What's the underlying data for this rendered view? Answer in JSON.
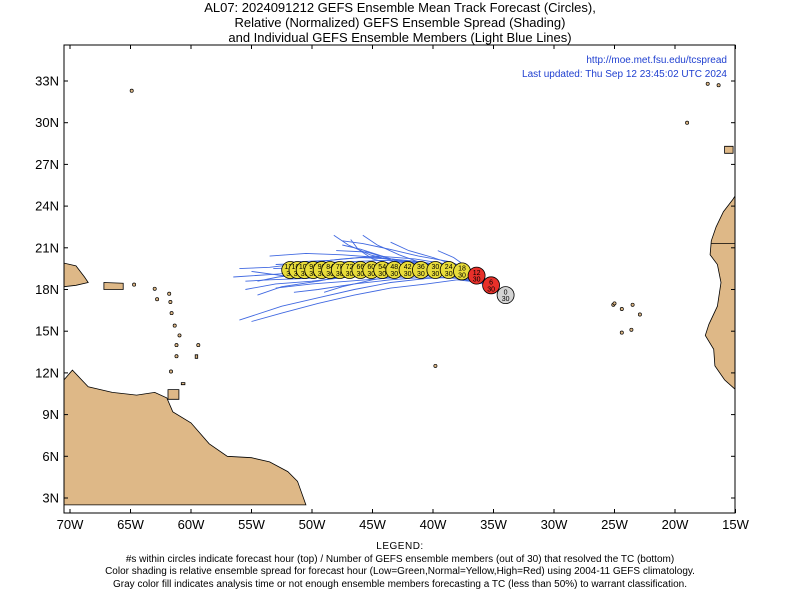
{
  "title": {
    "line1": "AL07: 2024091212 GEFS Ensemble Mean Track Forecast (Circles),",
    "line2": "Relative (Normalized) GEFS Ensemble Spread (Shading)",
    "line3": "and Individual GEFS Ensemble Members (Light Blue Lines)"
  },
  "info": {
    "url": "http://moe.met.fsu.edu/tcspread",
    "updated": "Last updated: Thu Sep 12 23:45:02 UTC 2024"
  },
  "axes": {
    "lon_ticks": [
      -70,
      -65,
      -60,
      -55,
      -50,
      -45,
      -40,
      -35,
      -30,
      -25,
      -20,
      -15
    ],
    "lon_labels": [
      "70W",
      "65W",
      "60W",
      "55W",
      "50W",
      "45W",
      "40W",
      "35W",
      "30W",
      "25W",
      "20W",
      "15W"
    ],
    "lat_ticks": [
      3,
      6,
      9,
      12,
      15,
      18,
      21,
      24,
      27,
      30,
      33
    ],
    "lat_labels": [
      "3N",
      "6N",
      "9N",
      "12N",
      "15N",
      "18N",
      "21N",
      "24N",
      "27N",
      "30N",
      "33N"
    ]
  },
  "colors": {
    "land": "#deb887",
    "member_lines": "#4169e1",
    "analysis": "#d3d3d3",
    "normal": "#e8dc3a",
    "high": "#e8302a",
    "text_blue": "#1f3fd0"
  },
  "track_points": [
    {
      "hour": "0",
      "members": "30",
      "lon": -34.0,
      "lat": 17.6,
      "spread": "analysis"
    },
    {
      "hour": "6",
      "members": "30",
      "lon": -35.2,
      "lat": 18.3,
      "spread": "high"
    },
    {
      "hour": "12",
      "members": "30",
      "lon": -36.4,
      "lat": 19.0,
      "spread": "high"
    },
    {
      "hour": "18",
      "members": "30",
      "lon": -37.6,
      "lat": 19.3,
      "spread": "normal"
    },
    {
      "hour": "24",
      "members": "30",
      "lon": -38.7,
      "lat": 19.4,
      "spread": "normal"
    },
    {
      "hour": "30",
      "members": "30",
      "lon": -39.8,
      "lat": 19.4,
      "spread": "normal"
    },
    {
      "hour": "36",
      "members": "30",
      "lon": -41.0,
      "lat": 19.4,
      "spread": "normal"
    },
    {
      "hour": "42",
      "members": "30",
      "lon": -42.1,
      "lat": 19.4,
      "spread": "normal"
    },
    {
      "hour": "48",
      "members": "30",
      "lon": -43.2,
      "lat": 19.4,
      "spread": "normal"
    },
    {
      "hour": "54",
      "members": "30",
      "lon": -44.2,
      "lat": 19.4,
      "spread": "normal"
    },
    {
      "hour": "60",
      "members": "30",
      "lon": -45.1,
      "lat": 19.4,
      "spread": "normal"
    },
    {
      "hour": "66",
      "members": "30",
      "lon": -46.0,
      "lat": 19.4,
      "spread": "normal"
    },
    {
      "hour": "72",
      "members": "30",
      "lon": -46.9,
      "lat": 19.4,
      "spread": "normal"
    },
    {
      "hour": "78",
      "members": "30",
      "lon": -47.7,
      "lat": 19.4,
      "spread": "normal"
    },
    {
      "hour": "84",
      "members": "30",
      "lon": -48.5,
      "lat": 19.4,
      "spread": "normal"
    },
    {
      "hour": "90",
      "members": "30",
      "lon": -49.2,
      "lat": 19.4,
      "spread": "normal"
    },
    {
      "hour": "96",
      "members": "30",
      "lon": -49.9,
      "lat": 19.4,
      "spread": "normal"
    },
    {
      "hour": "102",
      "members": "30",
      "lon": -50.6,
      "lat": 19.4,
      "spread": "normal"
    },
    {
      "hour": "108",
      "members": "30",
      "lon": -51.2,
      "lat": 19.4,
      "spread": "normal"
    },
    {
      "hour": "120",
      "members": "30",
      "lon": -51.8,
      "lat": 19.4,
      "spread": "normal"
    }
  ],
  "members": [
    [
      [
        -34.0,
        17.6
      ],
      [
        -36.0,
        18.7
      ],
      [
        -38.0,
        19.3
      ],
      [
        -41.0,
        19.5
      ],
      [
        -44.0,
        19.6
      ],
      [
        -47.0,
        19.5
      ],
      [
        -50.0,
        19.3
      ],
      [
        -53.0,
        19.1
      ],
      [
        -56.5,
        18.9
      ]
    ],
    [
      [
        -34.0,
        17.6
      ],
      [
        -36.2,
        18.9
      ],
      [
        -38.5,
        19.6
      ],
      [
        -41.5,
        20.0
      ],
      [
        -44.5,
        20.3
      ],
      [
        -47.5,
        20.5
      ],
      [
        -50.5,
        20.6
      ],
      [
        -53.5,
        20.4
      ]
    ],
    [
      [
        -34.0,
        17.6
      ],
      [
        -36.0,
        18.6
      ],
      [
        -38.2,
        19.0
      ],
      [
        -41.0,
        19.1
      ],
      [
        -44.0,
        19.0
      ],
      [
        -47.0,
        18.9
      ],
      [
        -50.0,
        18.6
      ],
      [
        -53.0,
        18.4
      ],
      [
        -55.5,
        18.0
      ]
    ],
    [
      [
        -34.0,
        17.6
      ],
      [
        -36.3,
        19.2
      ],
      [
        -38.6,
        20.0
      ],
      [
        -41.2,
        20.4
      ],
      [
        -43.6,
        20.9
      ],
      [
        -45.8,
        21.3
      ],
      [
        -47.5,
        21.5
      ]
    ],
    [
      [
        -34.0,
        17.6
      ],
      [
        -36.0,
        18.5
      ],
      [
        -38.0,
        18.9
      ],
      [
        -40.5,
        18.8
      ],
      [
        -43.5,
        18.5
      ],
      [
        -46.5,
        18.0
      ],
      [
        -49.5,
        17.4
      ],
      [
        -52.5,
        16.8
      ],
      [
        -56.0,
        15.8
      ]
    ],
    [
      [
        -34.0,
        17.6
      ],
      [
        -36.1,
        18.8
      ],
      [
        -38.2,
        19.4
      ],
      [
        -40.5,
        19.7
      ],
      [
        -43.0,
        20.0
      ],
      [
        -45.2,
        20.5
      ],
      [
        -47.0,
        21.2
      ],
      [
        -48.2,
        21.9
      ]
    ],
    [
      [
        -34.0,
        17.6
      ],
      [
        -35.8,
        18.5
      ],
      [
        -37.8,
        19.0
      ],
      [
        -40.5,
        19.2
      ],
      [
        -43.5,
        19.3
      ],
      [
        -46.5,
        19.1
      ],
      [
        -49.5,
        18.6
      ],
      [
        -52.5,
        18.2
      ],
      [
        -54.5,
        17.6
      ]
    ],
    [
      [
        -34.0,
        17.6
      ],
      [
        -36.2,
        19.0
      ],
      [
        -38.6,
        19.8
      ],
      [
        -41.5,
        20.2
      ],
      [
        -44.5,
        20.4
      ],
      [
        -47.5,
        20.2
      ],
      [
        -50.5,
        19.9
      ],
      [
        -53.5,
        19.6
      ],
      [
        -56.0,
        19.5
      ]
    ],
    [
      [
        -34.0,
        17.6
      ],
      [
        -36.0,
        18.6
      ],
      [
        -38.0,
        19.1
      ],
      [
        -40.0,
        19.2
      ],
      [
        -42.5,
        19.0
      ],
      [
        -45.0,
        18.7
      ],
      [
        -47.5,
        18.2
      ],
      [
        -49.0,
        17.8
      ]
    ],
    [
      [
        -34.0,
        17.6
      ],
      [
        -36.0,
        18.9
      ],
      [
        -38.0,
        19.7
      ],
      [
        -40.0,
        20.3
      ],
      [
        -42.0,
        20.8
      ],
      [
        -43.5,
        21.4
      ]
    ],
    [
      [
        -34.0,
        17.6
      ],
      [
        -36.0,
        18.6
      ],
      [
        -38.0,
        19.2
      ],
      [
        -40.2,
        19.5
      ],
      [
        -42.4,
        19.9
      ],
      [
        -44.2,
        20.4
      ],
      [
        -46.0,
        20.9
      ],
      [
        -47.5,
        21.2
      ]
    ],
    [
      [
        -34.0,
        17.6
      ],
      [
        -36.2,
        18.7
      ],
      [
        -38.5,
        19.2
      ],
      [
        -41.5,
        19.4
      ],
      [
        -44.5,
        19.3
      ],
      [
        -47.5,
        19.0
      ],
      [
        -50.5,
        18.8
      ],
      [
        -53.5,
        18.7
      ],
      [
        -55.5,
        18.6
      ]
    ],
    [
      [
        -34.0,
        17.6
      ],
      [
        -35.9,
        18.4
      ],
      [
        -37.8,
        18.8
      ],
      [
        -40.5,
        18.9
      ],
      [
        -43.5,
        18.7
      ],
      [
        -46.5,
        18.4
      ],
      [
        -49.5,
        18.0
      ],
      [
        -51.5,
        17.8
      ]
    ],
    [
      [
        -34.0,
        17.6
      ],
      [
        -36.0,
        18.8
      ],
      [
        -38.3,
        19.4
      ],
      [
        -40.8,
        19.6
      ],
      [
        -43.2,
        19.8
      ],
      [
        -45.0,
        20.2
      ],
      [
        -46.2,
        20.9
      ],
      [
        -46.8,
        21.6
      ]
    ],
    [
      [
        -34.0,
        17.6
      ],
      [
        -36.1,
        18.7
      ],
      [
        -38.4,
        19.2
      ],
      [
        -41.2,
        19.4
      ],
      [
        -44.2,
        19.5
      ],
      [
        -47.2,
        19.6
      ],
      [
        -50.2,
        19.6
      ],
      [
        -53.2,
        19.5
      ]
    ],
    [
      [
        -34.0,
        17.6
      ],
      [
        -36.0,
        18.6
      ],
      [
        -38.0,
        19.1
      ],
      [
        -40.5,
        19.3
      ],
      [
        -43.5,
        19.2
      ],
      [
        -46.5,
        19.1
      ],
      [
        -49.5,
        19.0
      ],
      [
        -52.5,
        19.0
      ],
      [
        -55.0,
        19.3
      ]
    ],
    [
      [
        -34.0,
        17.6
      ],
      [
        -36.3,
        19.0
      ],
      [
        -38.6,
        19.6
      ],
      [
        -41.0,
        19.8
      ],
      [
        -43.5,
        20.2
      ],
      [
        -45.5,
        20.7
      ],
      [
        -48.0,
        20.8
      ]
    ],
    [
      [
        -34.0,
        17.6
      ],
      [
        -36.0,
        18.5
      ],
      [
        -38.0,
        18.7
      ],
      [
        -40.5,
        18.4
      ],
      [
        -43.5,
        18.1
      ],
      [
        -46.5,
        17.6
      ],
      [
        -49.5,
        17.0
      ],
      [
        -52.5,
        16.3
      ],
      [
        -55.0,
        15.7
      ]
    ],
    [
      [
        -34.0,
        17.6
      ],
      [
        -36.1,
        18.8
      ],
      [
        -38.3,
        19.5
      ],
      [
        -41.0,
        19.9
      ],
      [
        -44.0,
        20.1
      ],
      [
        -47.0,
        20.0
      ],
      [
        -50.0,
        19.9
      ],
      [
        -53.0,
        19.8
      ]
    ],
    [
      [
        -34.0,
        17.6
      ],
      [
        -36.0,
        18.7
      ],
      [
        -38.1,
        19.3
      ],
      [
        -40.8,
        19.5
      ],
      [
        -43.8,
        19.6
      ],
      [
        -46.8,
        19.4
      ],
      [
        -49.8,
        19.2
      ],
      [
        -52.8,
        18.9
      ],
      [
        -54.5,
        18.6
      ]
    ],
    [
      [
        -34.0,
        17.6
      ],
      [
        -35.6,
        18.5
      ],
      [
        -37.0,
        19.5
      ],
      [
        -38.3,
        20.3
      ],
      [
        -39.6,
        20.8
      ]
    ],
    [
      [
        -34.0,
        17.6
      ],
      [
        -36.2,
        18.9
      ],
      [
        -38.5,
        19.6
      ],
      [
        -41.0,
        20.0
      ],
      [
        -43.5,
        20.2
      ],
      [
        -46.0,
        20.3
      ],
      [
        -48.5,
        20.1
      ],
      [
        -51.0,
        20.0
      ]
    ],
    [
      [
        -34.0,
        17.6
      ],
      [
        -36.0,
        18.6
      ],
      [
        -38.0,
        19.0
      ],
      [
        -41.0,
        19.0
      ],
      [
        -44.0,
        18.8
      ],
      [
        -47.0,
        18.6
      ],
      [
        -50.0,
        18.4
      ],
      [
        -53.0,
        18.1
      ]
    ],
    [
      [
        -34.0,
        17.6
      ],
      [
        -36.0,
        18.7
      ],
      [
        -38.2,
        19.3
      ],
      [
        -40.6,
        19.8
      ],
      [
        -42.8,
        20.5
      ],
      [
        -44.6,
        21.2
      ],
      [
        -45.8,
        21.9
      ]
    ]
  ]
}
